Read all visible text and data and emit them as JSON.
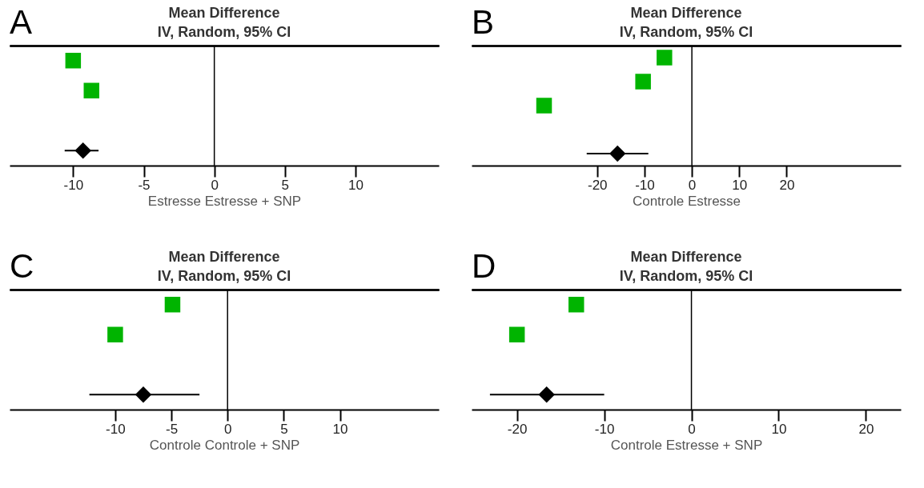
{
  "chart_data": [
    {
      "type": "scatter",
      "orientation": "horizontal",
      "title": "Mean Difference",
      "subtitle": "IV, Random, 95% CI",
      "xlabel": "Estresse   Estresse + SNP",
      "annotations": [
        "A"
      ],
      "categories": [
        null,
        null,
        null,
        null
      ],
      "xlim": [
        -14.5,
        15.9
      ],
      "xticks": [
        -10,
        -5,
        0,
        5,
        10
      ],
      "tick_labels": "x",
      "ref_lines": [
        {
          "axis": "x",
          "value": 0
        }
      ],
      "series": [
        {
          "color": "#00b400",
          "marker": "square",
          "values": [
            -10.0,
            -8.7,
            null,
            null
          ]
        },
        {
          "color": "#000000",
          "marker": "diamond",
          "values": [
            null,
            null,
            null,
            -9.3
          ],
          "errors": [
            null,
            null,
            null,
            [
              -10.6,
              -8.2
            ]
          ]
        }
      ]
    },
    {
      "type": "scatter",
      "orientation": "horizontal",
      "title": "Mean Difference",
      "subtitle": "IV, Random, 95% CI",
      "xlabel": "Controle   Estresse",
      "annotations": [
        "B"
      ],
      "categories": [
        null,
        null,
        null,
        null,
        null
      ],
      "xlim": [
        -46.5,
        44.1
      ],
      "xticks": [
        -20,
        -10,
        0,
        10,
        20
      ],
      "tick_labels": "x",
      "ref_lines": [
        {
          "axis": "x",
          "value": 0
        }
      ],
      "series": [
        {
          "color": "#00b400",
          "marker": "square",
          "values": [
            -5.8,
            -10.3,
            -31.2,
            null,
            null
          ]
        },
        {
          "color": "#000000",
          "marker": "diamond",
          "values": [
            null,
            null,
            null,
            null,
            -15.7
          ],
          "errors": [
            null,
            null,
            null,
            null,
            [
              -22.2,
              -9.2
            ]
          ]
        }
      ]
    },
    {
      "type": "scatter",
      "orientation": "horizontal",
      "title": "Mean Difference",
      "subtitle": "IV, Random, 95% CI",
      "xlabel": "Controle   Controle + SNP",
      "annotations": [
        "C"
      ],
      "categories": [
        null,
        null,
        null,
        null
      ],
      "xlim": [
        -19.4,
        18.8
      ],
      "xticks": [
        -10,
        -5,
        0,
        5,
        10
      ],
      "tick_labels": "x",
      "ref_lines": [
        {
          "axis": "x",
          "value": 0
        }
      ],
      "series": [
        {
          "color": "#00b400",
          "marker": "square",
          "values": [
            -4.9,
            -10.0,
            null,
            null
          ]
        },
        {
          "color": "#000000",
          "marker": "diamond",
          "values": [
            null,
            null,
            null,
            -7.5
          ],
          "errors": [
            null,
            null,
            null,
            [
              -12.3,
              -2.5
            ]
          ]
        }
      ]
    },
    {
      "type": "scatter",
      "orientation": "horizontal",
      "title": "Mean Difference",
      "subtitle": "IV, Random, 95% CI",
      "xlabel": "Controle   Estresse + SNP",
      "annotations": [
        "D"
      ],
      "categories": [
        null,
        null,
        null,
        null
      ],
      "xlim": [
        -25.2,
        24.0
      ],
      "xticks": [
        -20,
        -10,
        0,
        10,
        20
      ],
      "tick_labels": "x",
      "ref_lines": [
        {
          "axis": "x",
          "value": 0
        }
      ],
      "series": [
        {
          "color": "#00b400",
          "marker": "square",
          "values": [
            -13.2,
            -20.0,
            null,
            null
          ]
        },
        {
          "color": "#000000",
          "marker": "diamond",
          "values": [
            null,
            null,
            null,
            -16.6
          ],
          "errors": [
            null,
            null,
            null,
            [
              -23.1,
              -10.0
            ]
          ]
        }
      ]
    }
  ]
}
